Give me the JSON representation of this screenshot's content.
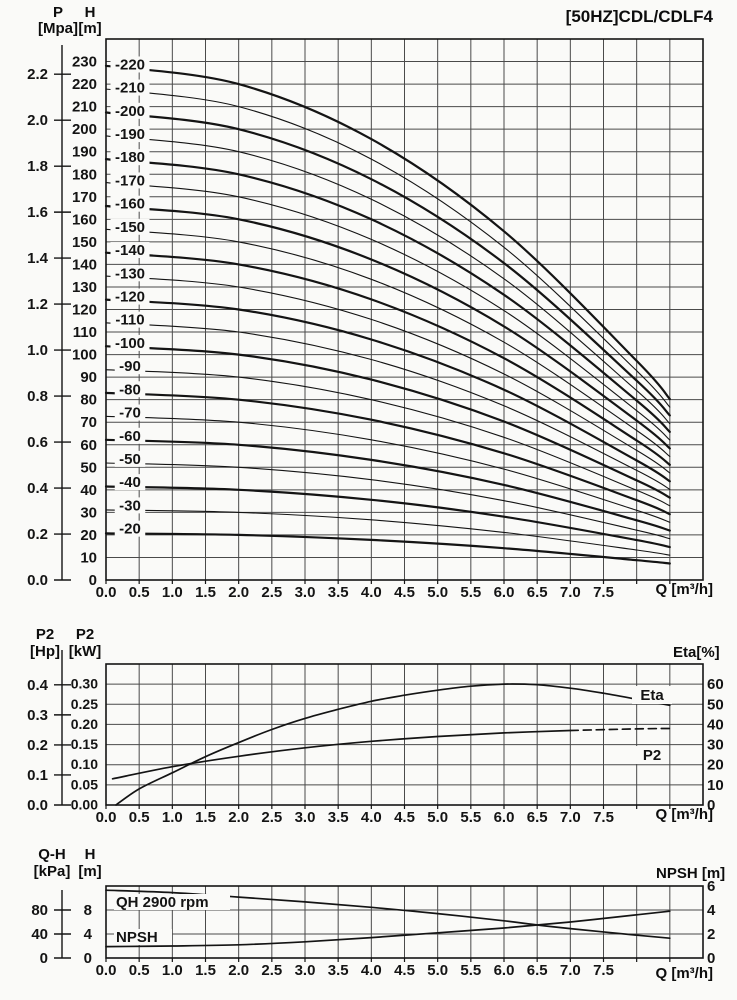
{
  "title": "[50HZ]CDL/CDLF4",
  "q_axis": {
    "unit": "Q [m³/h]",
    "ticks": [
      "0.0",
      "0.5",
      "1.0",
      "1.5",
      "2.0",
      "2.5",
      "3.0",
      "3.5",
      "4.0",
      "4.5",
      "5.0",
      "5.5",
      "6.0",
      "6.5",
      "7.0",
      "7.5"
    ]
  },
  "main_chart": {
    "axis1_name": "P",
    "axis1_unit": "[Mpa]",
    "axis2_name": "H",
    "axis2_unit": "[m]",
    "p_ticks": [
      "2.2",
      "2.0",
      "1.8",
      "1.6",
      "1.4",
      "1.2",
      "1.0",
      "0.8",
      "0.6",
      "0.4",
      "0.2",
      "0.0"
    ],
    "h_ticks": [
      "230",
      "220",
      "210",
      "200",
      "190",
      "180",
      "170",
      "160",
      "150",
      "140",
      "130",
      "120",
      "110",
      "100",
      "90",
      "80",
      "70",
      "60",
      "50",
      "40",
      "30",
      "20",
      "10",
      "0"
    ]
  },
  "power_chart": {
    "axis1_name": "P2",
    "axis1_unit": "[Hp]",
    "axis2_name": "P2",
    "axis2_unit": "[kW]",
    "right_axis": "Eta[%]",
    "hp_ticks": [
      "0.4",
      "0.3",
      "0.2",
      "0.1",
      "0.0"
    ],
    "kw_ticks": [
      "0.30",
      "0.25",
      "0.20",
      "0.15",
      "0.10",
      "0.05",
      "0.00"
    ],
    "eta_ticks": [
      "60",
      "50",
      "40",
      "30",
      "20",
      "10",
      "0"
    ],
    "labels": {
      "eta": "Eta",
      "p2": "P2"
    }
  },
  "npsh_chart": {
    "axis1_name": "Q-H",
    "axis1_unit": "[kPa]",
    "axis2_name": "H",
    "axis2_unit": "[m]",
    "right_axis": "NPSH [m]",
    "kpa_ticks": [
      "80",
      "40",
      "0"
    ],
    "h_ticks": [
      "8",
      "4",
      "0"
    ],
    "npsh_ticks": [
      "6",
      "4",
      "2",
      "0"
    ],
    "labels": {
      "qh": "QH 2900 rpm",
      "npsh": "NPSH"
    }
  },
  "chart_data": [
    {
      "type": "line",
      "title": "[50HZ]CDL/CDLF4",
      "xlabel": "Q [m³/h]",
      "ylabel": "H [m] (left also P [Mpa])",
      "x_range": [
        0,
        9
      ],
      "y_range": [
        0,
        240
      ],
      "grid": "on",
      "q": [
        0,
        2,
        4,
        6,
        8,
        8.5
      ],
      "series": [
        {
          "label": "-220",
          "values": [
            228.1,
            220.0,
            195.6,
            154.7,
            97.2,
            80.3
          ]
        },
        {
          "label": "-210",
          "values": [
            217.8,
            210.0,
            186.7,
            147.6,
            92.8,
            76.7
          ]
        },
        {
          "label": "-200",
          "values": [
            207.4,
            200.0,
            177.8,
            140.6,
            88.4,
            73.0
          ]
        },
        {
          "label": "-190",
          "values": [
            197.0,
            190.0,
            168.9,
            133.6,
            84.0,
            69.4
          ]
        },
        {
          "label": "-180",
          "values": [
            186.7,
            180.0,
            160.0,
            126.5,
            79.6,
            65.7
          ]
        },
        {
          "label": "-170",
          "values": [
            176.3,
            170.0,
            151.1,
            119.5,
            75.1,
            62.1
          ]
        },
        {
          "label": "-160",
          "values": [
            165.9,
            160.0,
            142.2,
            112.5,
            70.7,
            58.4
          ]
        },
        {
          "label": "-150",
          "values": [
            155.6,
            150.0,
            133.4,
            105.5,
            66.3,
            54.8
          ]
        },
        {
          "label": "-140",
          "values": [
            145.2,
            140.0,
            124.5,
            98.4,
            61.9,
            51.1
          ]
        },
        {
          "label": "-130",
          "values": [
            134.8,
            130.0,
            115.6,
            91.4,
            57.5,
            47.5
          ]
        },
        {
          "label": "-120",
          "values": [
            124.4,
            120.0,
            106.7,
            84.4,
            53.0,
            43.8
          ]
        },
        {
          "label": "-110",
          "values": [
            114.1,
            110.0,
            97.8,
            77.3,
            48.6,
            40.2
          ]
        },
        {
          "label": "-100",
          "values": [
            103.7,
            100.0,
            88.9,
            70.3,
            44.2,
            36.5
          ]
        },
        {
          "label": "-90",
          "values": [
            93.3,
            90.0,
            80.0,
            63.3,
            39.8,
            32.9
          ]
        },
        {
          "label": "-80",
          "values": [
            83.0,
            80.0,
            71.1,
            56.2,
            35.4,
            29.2
          ]
        },
        {
          "label": "-70",
          "values": [
            72.6,
            70.0,
            62.2,
            49.2,
            30.9,
            25.6
          ]
        },
        {
          "label": "-60",
          "values": [
            62.2,
            60.0,
            53.3,
            42.2,
            26.5,
            21.9
          ]
        },
        {
          "label": "-50",
          "values": [
            51.9,
            50.0,
            44.5,
            35.2,
            22.1,
            18.3
          ]
        },
        {
          "label": "-40",
          "values": [
            41.5,
            40.0,
            35.6,
            28.1,
            17.7,
            14.6
          ]
        },
        {
          "label": "-30",
          "values": [
            31.1,
            30.0,
            26.7,
            21.1,
            13.3,
            11.0
          ]
        },
        {
          "label": "-20",
          "values": [
            20.7,
            20.0,
            17.8,
            14.1,
            8.8,
            7.3
          ]
        }
      ]
    },
    {
      "type": "line",
      "xlabel": "Q [m³/h]",
      "ylabel_left": "P2 [kW] / P2 [Hp]",
      "ylabel_right": "Eta[%]",
      "x_range": [
        0,
        9
      ],
      "y_range_kw": [
        0,
        0.35
      ],
      "y_range_eta": [
        0,
        70
      ],
      "grid": "on",
      "series": [
        {
          "label": "Eta",
          "unit": "%",
          "points": [
            [
              0.15,
              0
            ],
            [
              0.5,
              8
            ],
            [
              1,
              16
            ],
            [
              1.5,
              24
            ],
            [
              2,
              31
            ],
            [
              2.5,
              37.5
            ],
            [
              3,
              43
            ],
            [
              3.5,
              47.5
            ],
            [
              4,
              51.5
            ],
            [
              4.5,
              54.5
            ],
            [
              5,
              57
            ],
            [
              5.5,
              59
            ],
            [
              6,
              60
            ],
            [
              6.5,
              59.7
            ],
            [
              7,
              58
            ],
            [
              7.5,
              55.5
            ],
            [
              8,
              52.5
            ],
            [
              8.5,
              49.5
            ]
          ]
        },
        {
          "label": "P2",
          "unit": "kW",
          "points": [
            [
              0.1,
              0.065
            ],
            [
              1,
              0.095
            ],
            [
              2,
              0.121
            ],
            [
              3,
              0.142
            ],
            [
              4,
              0.158
            ],
            [
              5,
              0.17
            ],
            [
              6,
              0.179
            ],
            [
              7,
              0.185
            ]
          ],
          "points_dashed": [
            [
              7,
              0.185
            ],
            [
              8,
              0.189
            ],
            [
              8.5,
              0.19
            ]
          ]
        }
      ]
    },
    {
      "type": "line",
      "xlabel": "Q [m³/h]",
      "ylabel_left": "Q-H [kPa] / H [m]",
      "ylabel_right": "NPSH [m]",
      "x_range": [
        0,
        9
      ],
      "y_range_h": [
        0,
        12
      ],
      "y_range_npsh": [
        0,
        6
      ],
      "grid": "on",
      "series": [
        {
          "label": "QH 2900 rpm",
          "unit": "m",
          "points": [
            [
              0,
              11.3
            ],
            [
              1,
              10.9
            ],
            [
              2,
              10.15
            ],
            [
              3,
              9.35
            ],
            [
              4,
              8.45
            ],
            [
              5,
              7.4
            ],
            [
              6,
              6.2
            ],
            [
              6.5,
              5.5
            ],
            [
              7,
              4.9
            ],
            [
              8,
              3.8
            ],
            [
              8.5,
              3.3
            ]
          ]
        },
        {
          "label": "NPSH",
          "unit": "m",
          "points": [
            [
              0,
              0.95
            ],
            [
              1,
              1.0
            ],
            [
              2,
              1.1
            ],
            [
              3,
              1.35
            ],
            [
              4,
              1.7
            ],
            [
              5,
              2.1
            ],
            [
              6,
              2.5
            ],
            [
              7,
              3.0
            ],
            [
              8,
              3.6
            ],
            [
              8.5,
              3.9
            ]
          ]
        }
      ]
    }
  ]
}
